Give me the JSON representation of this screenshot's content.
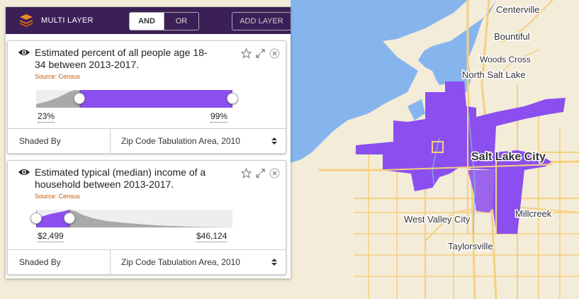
{
  "header": {
    "title": "MULTI LAYER",
    "toggle_and": "AND",
    "toggle_or": "OR",
    "add_layer": "ADD LAYER"
  },
  "layers": [
    {
      "title": "Estimated percent of all people age 18-34 between 2013-2017.",
      "source": "Source: Census",
      "range_min_label": "23%",
      "range_max_label": "99%",
      "range_min_fraction": 0.22,
      "range_max_fraction": 1.0,
      "shaded_by_label": "Shaded By",
      "shaded_by_value": "Zip Code Tabulation Area, 2010"
    },
    {
      "title": "Estimated typical (median) income of a household between 2013-2017.",
      "source": "Source: Census",
      "range_min_label": "$2,499",
      "range_max_label": "$46,124",
      "range_min_fraction": 0.0,
      "range_max_fraction": 0.17,
      "shaded_by_label": "Shaded By",
      "shaded_by_value": "Zip Code Tabulation Area, 2010"
    }
  ],
  "map": {
    "labels": {
      "centerville": "Centerville",
      "bountiful": "Bountiful",
      "woods_cross": "Woods Cross",
      "north_salt_lake": "North Salt Lake",
      "salt_lake_city": "Salt Lake City",
      "west_valley_city": "West Valley City",
      "millcreek": "Millcreek",
      "taylorsville": "Taylorsville"
    },
    "colors": {
      "water": "#86b5ee",
      "land": "#f3ecd9",
      "highlight": "#8b4ff0",
      "road": "#f6cf7e"
    }
  },
  "colors": {
    "header_bg": "#3b1f57",
    "accent_purple": "#8b4ff0",
    "source_orange": "#c05a00"
  }
}
